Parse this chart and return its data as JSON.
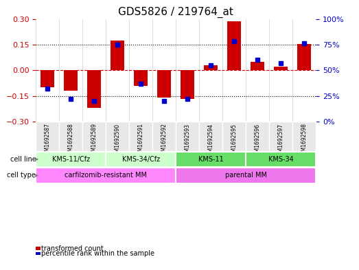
{
  "title": "GDS5826 / 219764_at",
  "samples": [
    "GSM1692587",
    "GSM1692588",
    "GSM1692589",
    "GSM1692590",
    "GSM1692591",
    "GSM1692592",
    "GSM1692593",
    "GSM1692594",
    "GSM1692595",
    "GSM1692596",
    "GSM1692597",
    "GSM1692598"
  ],
  "transformed_count": [
    -0.1,
    -0.12,
    -0.22,
    0.175,
    -0.09,
    -0.16,
    -0.165,
    0.03,
    0.285,
    0.05,
    0.02,
    0.155
  ],
  "percentile_rank": [
    32,
    22,
    20,
    75,
    37,
    20,
    22,
    55,
    78,
    60,
    57,
    76
  ],
  "bar_color": "#cc0000",
  "dot_color": "#0000cc",
  "left_ylim": [
    -0.3,
    0.3
  ],
  "right_ylim": [
    0,
    100
  ],
  "left_yticks": [
    -0.3,
    -0.15,
    0,
    0.15,
    0.3
  ],
  "right_yticks": [
    0,
    25,
    50,
    75,
    100
  ],
  "right_yticklabels": [
    "0%",
    "25%",
    "50%",
    "75%",
    "100%"
  ],
  "hlines": [
    -0.15,
    0.0,
    0.15
  ],
  "hline_styles": [
    "dotted",
    "dashed",
    "dotted"
  ],
  "cell_line_groups": [
    {
      "label": "KMS-11/Cfz",
      "start": 0,
      "end": 3,
      "color": "#aaffaa"
    },
    {
      "label": "KMS-34/Cfz",
      "start": 3,
      "end": 6,
      "color": "#aaffaa"
    },
    {
      "label": "KMS-11",
      "start": 6,
      "end": 9,
      "color": "#55ee55"
    },
    {
      "label": "KMS-34",
      "start": 9,
      "end": 12,
      "color": "#55ee55"
    }
  ],
  "cell_type_groups": [
    {
      "label": "carfilzomib-resistant MM",
      "start": 0,
      "end": 6,
      "color": "#ff88ff"
    },
    {
      "label": "parental MM",
      "start": 6,
      "end": 12,
      "color": "#ff88ff"
    }
  ],
  "cell_line_row_label": "cell line",
  "cell_type_row_label": "cell type",
  "legend_items": [
    {
      "color": "#cc0000",
      "label": "transformed count"
    },
    {
      "color": "#0000cc",
      "label": "percentile rank within the sample"
    }
  ],
  "bg_color": "#e8e8e8",
  "plot_bg": "#ffffff",
  "bar_width": 0.6
}
